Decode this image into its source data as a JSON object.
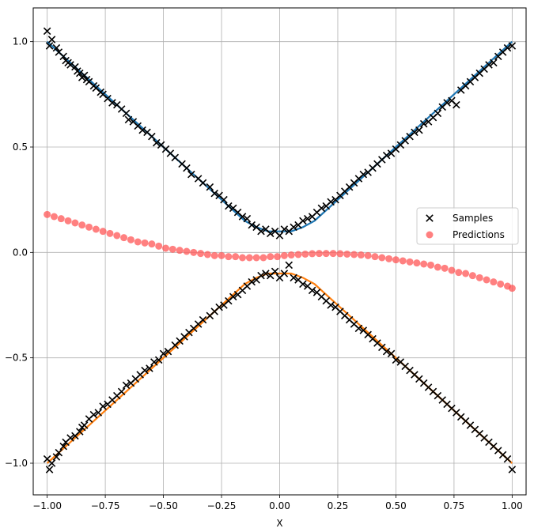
{
  "chart_data": {
    "type": "scatter",
    "title": "",
    "xlabel": "X",
    "ylabel": "",
    "xlim": [
      -1.06,
      1.06
    ],
    "ylim": [
      -1.15,
      1.16
    ],
    "grid": true,
    "legend_position": "center-right",
    "x_ticks": [
      -1.0,
      -0.75,
      -0.5,
      -0.25,
      0.0,
      0.25,
      0.5,
      0.75,
      1.0
    ],
    "x_tick_labels": [
      "−1.00",
      "−0.75",
      "−0.50",
      "−0.25",
      "0.00",
      "0.25",
      "0.50",
      "0.75",
      "1.00"
    ],
    "y_ticks": [
      -1.0,
      -0.5,
      0.0,
      0.5,
      1.0
    ],
    "y_tick_labels": [
      "−1.0",
      "−0.5",
      "0.0",
      "0.5",
      "1.0"
    ],
    "colors": {
      "samples": "#000000",
      "predictions": "#ff5555",
      "upper_curve": "#1f77b4",
      "lower_curve": "#ff7f0e",
      "grid": "#b0b0b0"
    },
    "series": [
      {
        "name": "Samples",
        "kind": "scatter",
        "marker": "x",
        "x": [
          -1.0,
          -0.99,
          -0.98,
          -0.96,
          -0.95,
          -0.93,
          -0.92,
          -0.91,
          -0.9,
          -0.88,
          -0.87,
          -0.86,
          -0.85,
          -0.84,
          -0.83,
          -0.82,
          -0.8,
          -0.79,
          -0.77,
          -0.76,
          -0.74,
          -0.72,
          -0.7,
          -0.68,
          -0.66,
          -0.65,
          -0.63,
          -0.61,
          -0.59,
          -0.57,
          -0.55,
          -0.53,
          -0.51,
          -0.49,
          -0.47,
          -0.45,
          -0.42,
          -0.4,
          -0.38,
          -0.35,
          -0.33,
          -0.3,
          -0.28,
          -0.26,
          -0.24,
          -0.22,
          -0.2,
          -0.18,
          -0.16,
          -0.14,
          -0.12,
          -0.1,
          -0.08,
          -0.06,
          -0.04,
          -0.02,
          0.0,
          0.02,
          0.04,
          0.06,
          0.08,
          0.1,
          0.12,
          0.14,
          0.16,
          0.18,
          0.2,
          0.22,
          0.24,
          0.26,
          0.28,
          0.3,
          0.32,
          0.34,
          0.36,
          0.38,
          0.4,
          0.42,
          0.44,
          0.46,
          0.48,
          0.5,
          0.52,
          0.54,
          0.56,
          0.58,
          0.6,
          0.62,
          0.64,
          0.66,
          0.68,
          0.7,
          0.72,
          0.74,
          0.76,
          0.78,
          0.8,
          0.82,
          0.84,
          0.86,
          0.88,
          0.9,
          0.92,
          0.94,
          0.96,
          0.98,
          1.0,
          -1.0,
          -0.99,
          -0.98,
          -0.96,
          -0.95,
          -0.93,
          -0.92,
          -0.9,
          -0.88,
          -0.86,
          -0.85,
          -0.84,
          -0.82,
          -0.8,
          -0.78,
          -0.76,
          -0.74,
          -0.72,
          -0.7,
          -0.68,
          -0.66,
          -0.64,
          -0.62,
          -0.6,
          -0.58,
          -0.56,
          -0.54,
          -0.52,
          -0.5,
          -0.48,
          -0.45,
          -0.43,
          -0.41,
          -0.39,
          -0.37,
          -0.35,
          -0.33,
          -0.3,
          -0.28,
          -0.26,
          -0.24,
          -0.22,
          -0.2,
          -0.18,
          -0.16,
          -0.14,
          -0.12,
          -0.1,
          -0.08,
          -0.06,
          -0.04,
          -0.02,
          0.0,
          0.02,
          0.04,
          0.06,
          0.08,
          0.1,
          0.12,
          0.14,
          0.16,
          0.18,
          0.2,
          0.22,
          0.24,
          0.26,
          0.28,
          0.3,
          0.32,
          0.34,
          0.36,
          0.38,
          0.4,
          0.42,
          0.44,
          0.46,
          0.48,
          0.5,
          0.52,
          0.54,
          0.56,
          0.58,
          0.6,
          0.62,
          0.64,
          0.66,
          0.68,
          0.7,
          0.72,
          0.74,
          0.76,
          0.78,
          0.8,
          0.82,
          0.84,
          0.86,
          0.88,
          0.9,
          0.92,
          0.94,
          0.96,
          0.98,
          1.0
        ],
        "y": [
          1.05,
          0.98,
          1.01,
          0.97,
          0.95,
          0.93,
          0.91,
          0.9,
          0.89,
          0.88,
          0.86,
          0.85,
          0.83,
          0.84,
          0.82,
          0.81,
          0.79,
          0.78,
          0.76,
          0.75,
          0.73,
          0.71,
          0.7,
          0.68,
          0.66,
          0.63,
          0.62,
          0.6,
          0.58,
          0.57,
          0.55,
          0.52,
          0.51,
          0.49,
          0.47,
          0.45,
          0.42,
          0.4,
          0.37,
          0.35,
          0.33,
          0.31,
          0.28,
          0.27,
          0.25,
          0.22,
          0.21,
          0.19,
          0.17,
          0.16,
          0.13,
          0.12,
          0.1,
          0.11,
          0.09,
          0.1,
          0.08,
          0.11,
          0.1,
          0.12,
          0.13,
          0.15,
          0.16,
          0.17,
          0.19,
          0.21,
          0.22,
          0.24,
          0.25,
          0.27,
          0.29,
          0.31,
          0.33,
          0.35,
          0.37,
          0.38,
          0.4,
          0.42,
          0.44,
          0.46,
          0.47,
          0.49,
          0.51,
          0.53,
          0.55,
          0.57,
          0.58,
          0.61,
          0.62,
          0.64,
          0.66,
          0.69,
          0.71,
          0.72,
          0.7,
          0.77,
          0.79,
          0.81,
          0.83,
          0.85,
          0.87,
          0.89,
          0.9,
          0.93,
          0.95,
          0.97,
          0.98,
          -0.98,
          -1.03,
          -1.0,
          -0.97,
          -0.95,
          -0.92,
          -0.9,
          -0.88,
          -0.87,
          -0.85,
          -0.83,
          -0.82,
          -0.79,
          -0.77,
          -0.76,
          -0.73,
          -0.72,
          -0.7,
          -0.68,
          -0.66,
          -0.63,
          -0.62,
          -0.6,
          -0.58,
          -0.56,
          -0.55,
          -0.52,
          -0.51,
          -0.48,
          -0.47,
          -0.44,
          -0.42,
          -0.4,
          -0.38,
          -0.36,
          -0.34,
          -0.32,
          -0.3,
          -0.28,
          -0.26,
          -0.25,
          -0.23,
          -0.21,
          -0.2,
          -0.18,
          -0.16,
          -0.14,
          -0.13,
          -0.11,
          -0.1,
          -0.11,
          -0.09,
          -0.12,
          -0.1,
          -0.06,
          -0.12,
          -0.13,
          -0.15,
          -0.16,
          -0.18,
          -0.19,
          -0.21,
          -0.23,
          -0.25,
          -0.26,
          -0.28,
          -0.3,
          -0.32,
          -0.34,
          -0.36,
          -0.37,
          -0.39,
          -0.41,
          -0.43,
          -0.45,
          -0.47,
          -0.48,
          -0.51,
          -0.52,
          -0.54,
          -0.56,
          -0.58,
          -0.6,
          -0.62,
          -0.64,
          -0.66,
          -0.68,
          -0.7,
          -0.72,
          -0.74,
          -0.76,
          -0.78,
          -0.8,
          -0.82,
          -0.84,
          -0.86,
          -0.88,
          -0.9,
          -0.92,
          -0.94,
          -0.96,
          -0.98,
          -1.03
        ]
      },
      {
        "name": "Predictions",
        "kind": "scatter",
        "marker": "o",
        "x": [
          -1.0,
          -0.97,
          -0.94,
          -0.91,
          -0.88,
          -0.85,
          -0.82,
          -0.79,
          -0.76,
          -0.73,
          -0.7,
          -0.67,
          -0.64,
          -0.61,
          -0.58,
          -0.55,
          -0.52,
          -0.49,
          -0.46,
          -0.43,
          -0.4,
          -0.37,
          -0.34,
          -0.31,
          -0.28,
          -0.25,
          -0.22,
          -0.19,
          -0.16,
          -0.13,
          -0.1,
          -0.07,
          -0.04,
          -0.01,
          0.02,
          0.05,
          0.08,
          0.11,
          0.14,
          0.17,
          0.2,
          0.23,
          0.26,
          0.29,
          0.32,
          0.35,
          0.38,
          0.41,
          0.44,
          0.47,
          0.5,
          0.53,
          0.56,
          0.59,
          0.62,
          0.65,
          0.68,
          0.71,
          0.74,
          0.77,
          0.8,
          0.83,
          0.86,
          0.89,
          0.92,
          0.95,
          0.98,
          1.0
        ],
        "y": [
          0.18,
          0.17,
          0.16,
          0.15,
          0.14,
          0.13,
          0.12,
          0.11,
          0.1,
          0.09,
          0.08,
          0.07,
          0.06,
          0.05,
          0.045,
          0.04,
          0.03,
          0.02,
          0.015,
          0.01,
          0.005,
          0.0,
          -0.005,
          -0.01,
          -0.015,
          -0.015,
          -0.02,
          -0.02,
          -0.025,
          -0.025,
          -0.025,
          -0.025,
          -0.02,
          -0.02,
          -0.015,
          -0.012,
          -0.01,
          -0.008,
          -0.006,
          -0.005,
          -0.005,
          -0.005,
          -0.006,
          -0.008,
          -0.01,
          -0.012,
          -0.015,
          -0.02,
          -0.025,
          -0.03,
          -0.035,
          -0.04,
          -0.045,
          -0.05,
          -0.055,
          -0.06,
          -0.07,
          -0.075,
          -0.085,
          -0.095,
          -0.1,
          -0.11,
          -0.12,
          -0.13,
          -0.14,
          -0.15,
          -0.16,
          -0.17
        ]
      },
      {
        "kind": "line",
        "x": [
          -1.0,
          -0.9,
          -0.8,
          -0.7,
          -0.6,
          -0.5,
          -0.4,
          -0.3,
          -0.2,
          -0.15,
          -0.1,
          -0.05,
          0.0,
          0.05,
          0.1,
          0.15,
          0.2,
          0.3,
          0.4,
          0.5,
          0.6,
          0.7,
          0.8,
          0.9,
          1.0
        ],
        "y": [
          1.0,
          0.9,
          0.8,
          0.7,
          0.6,
          0.5,
          0.4,
          0.3,
          0.2,
          0.15,
          0.12,
          0.1,
          0.1,
          0.1,
          0.12,
          0.15,
          0.2,
          0.3,
          0.4,
          0.5,
          0.6,
          0.7,
          0.8,
          0.9,
          1.0
        ]
      },
      {
        "kind": "line",
        "x": [
          -1.0,
          -0.9,
          -0.8,
          -0.7,
          -0.6,
          -0.5,
          -0.4,
          -0.3,
          -0.2,
          -0.15,
          -0.1,
          -0.05,
          0.0,
          0.05,
          0.1,
          0.15,
          0.2,
          0.3,
          0.4,
          0.5,
          0.6,
          0.7,
          0.8,
          0.9,
          1.0
        ],
        "y": [
          -1.0,
          -0.9,
          -0.8,
          -0.7,
          -0.6,
          -0.5,
          -0.4,
          -0.3,
          -0.2,
          -0.15,
          -0.12,
          -0.1,
          -0.1,
          -0.1,
          -0.12,
          -0.15,
          -0.2,
          -0.3,
          -0.4,
          -0.5,
          -0.6,
          -0.7,
          -0.8,
          -0.9,
          -1.0
        ]
      }
    ],
    "legend": [
      {
        "label": "Samples",
        "marker": "x"
      },
      {
        "label": "Predictions",
        "marker": "o"
      }
    ]
  }
}
